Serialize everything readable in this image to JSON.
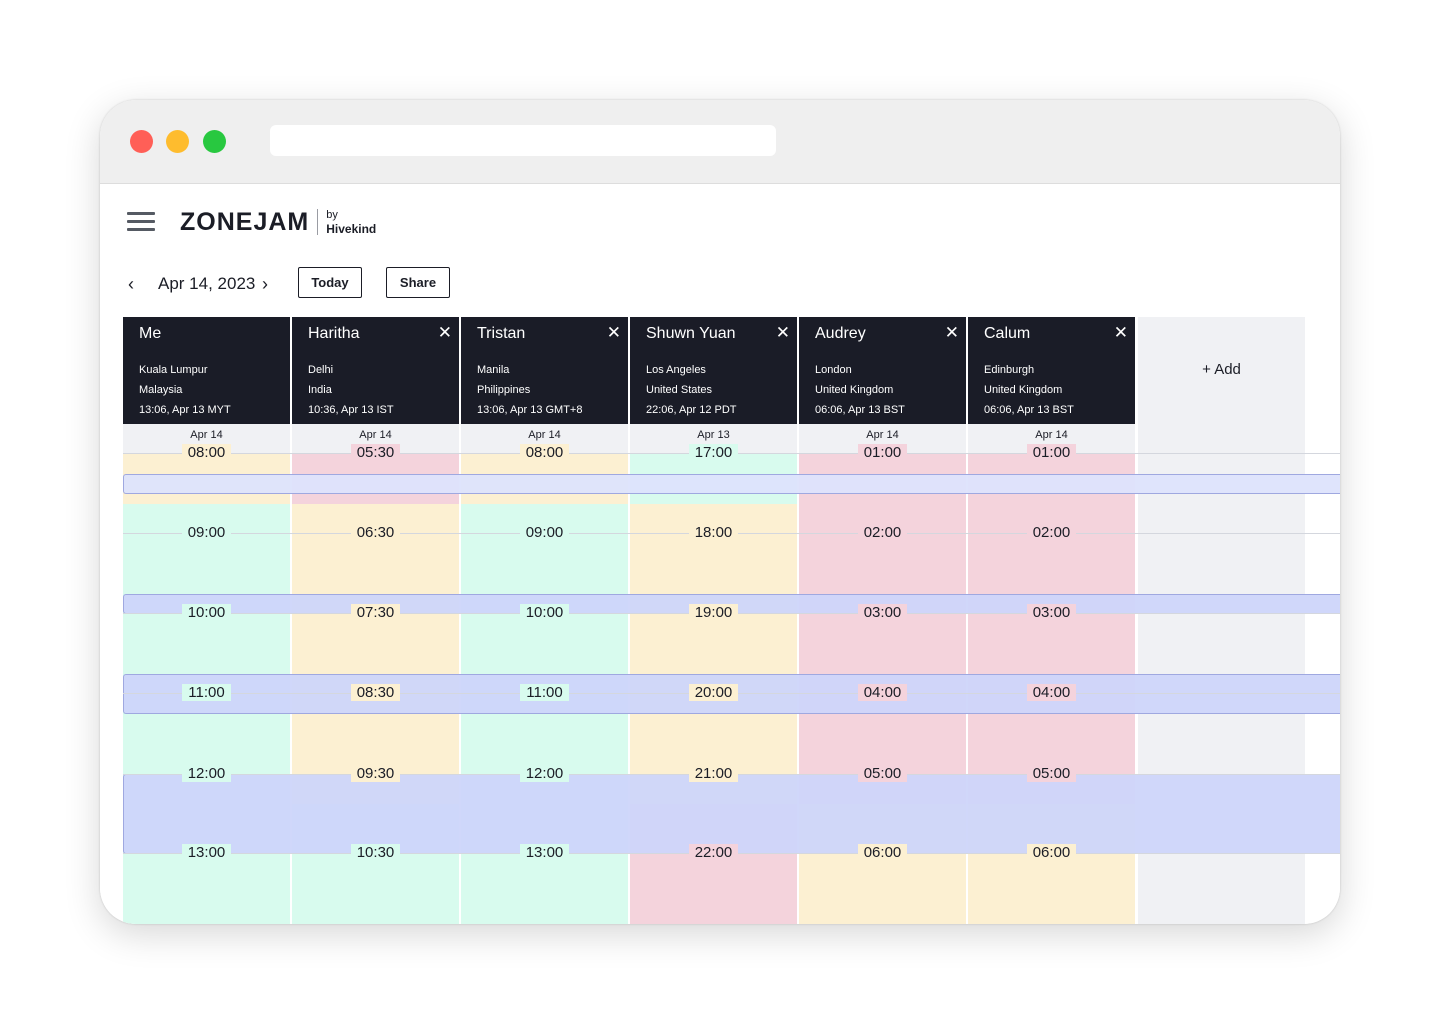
{
  "app": {
    "logo_text": "ZONEJAM",
    "logo_by": "by",
    "logo_company": "Hivekind"
  },
  "icons": {
    "menu": "hamburger-menu-icon",
    "prev": "chevron-left-icon",
    "next": "chevron-right-icon",
    "close": "close-icon"
  },
  "toolbar": {
    "date": "Apr 14, 2023",
    "prev_glyph": "‹",
    "next_glyph": "›",
    "today_label": "Today",
    "share_label": "Share"
  },
  "add_label": "+ Add",
  "close_glyph": "✕",
  "colors": {
    "header_bg": "#1a1c27",
    "yellow": "#fcf0d2",
    "pink": "#f4d3dc",
    "mint": "#d8fbee",
    "band_light": "#dde3fc",
    "band_mid": "#cdd5fa"
  },
  "people": [
    {
      "name": "Me",
      "closable": false,
      "city": "Kuala Lumpur",
      "country": "Malaysia",
      "local_time": "13:06, Apr 13 MYT",
      "day_label": "Apr 14",
      "times": [
        "08:00",
        "09:00",
        "10:00",
        "11:00",
        "12:00",
        "13:00"
      ],
      "segments": [
        [
          "yellow",
          0,
          80
        ],
        [
          "mint",
          80,
          500
        ]
      ]
    },
    {
      "name": "Haritha",
      "closable": true,
      "city": "Delhi",
      "country": "India",
      "local_time": "10:36, Apr 13 IST",
      "day_label": "Apr 14",
      "times": [
        "05:30",
        "06:30",
        "07:30",
        "08:30",
        "09:30",
        "10:30"
      ],
      "segments": [
        [
          "pink",
          0,
          80
        ],
        [
          "yellow",
          80,
          380
        ],
        [
          "mint",
          380,
          500
        ]
      ]
    },
    {
      "name": "Tristan",
      "closable": true,
      "city": "Manila",
      "country": "Philippines",
      "local_time": "13:06, Apr 13 GMT+8",
      "day_label": "Apr 14",
      "times": [
        "08:00",
        "09:00",
        "10:00",
        "11:00",
        "12:00",
        "13:00"
      ],
      "segments": [
        [
          "yellow",
          0,
          80
        ],
        [
          "mint",
          80,
          500
        ]
      ]
    },
    {
      "name": "Shuwn Yuan",
      "closable": true,
      "city": "Los Angeles",
      "country": "United States",
      "local_time": "22:06, Apr 12 PDT",
      "day_label": "Apr 13",
      "times": [
        "17:00",
        "18:00",
        "19:00",
        "20:00",
        "21:00",
        "22:00"
      ],
      "segments": [
        [
          "mint",
          0,
          80
        ],
        [
          "yellow",
          80,
          380
        ],
        [
          "pink",
          380,
          500
        ]
      ]
    },
    {
      "name": "Audrey",
      "closable": true,
      "city": "London",
      "country": "United Kingdom",
      "local_time": "06:06, Apr 13 BST",
      "day_label": "Apr 14",
      "times": [
        "01:00",
        "02:00",
        "03:00",
        "04:00",
        "05:00",
        "06:00"
      ],
      "segments": [
        [
          "pink",
          0,
          380
        ],
        [
          "yellow",
          380,
          500
        ]
      ]
    },
    {
      "name": "Calum",
      "closable": true,
      "city": "Edinburgh",
      "country": "United Kingdom",
      "local_time": "06:06, Apr 13 BST",
      "day_label": "Apr 14",
      "times": [
        "01:00",
        "02:00",
        "03:00",
        "04:00",
        "05:00",
        "06:00"
      ],
      "segments": [
        [
          "pink",
          0,
          380
        ],
        [
          "yellow",
          380,
          500
        ]
      ]
    }
  ]
}
